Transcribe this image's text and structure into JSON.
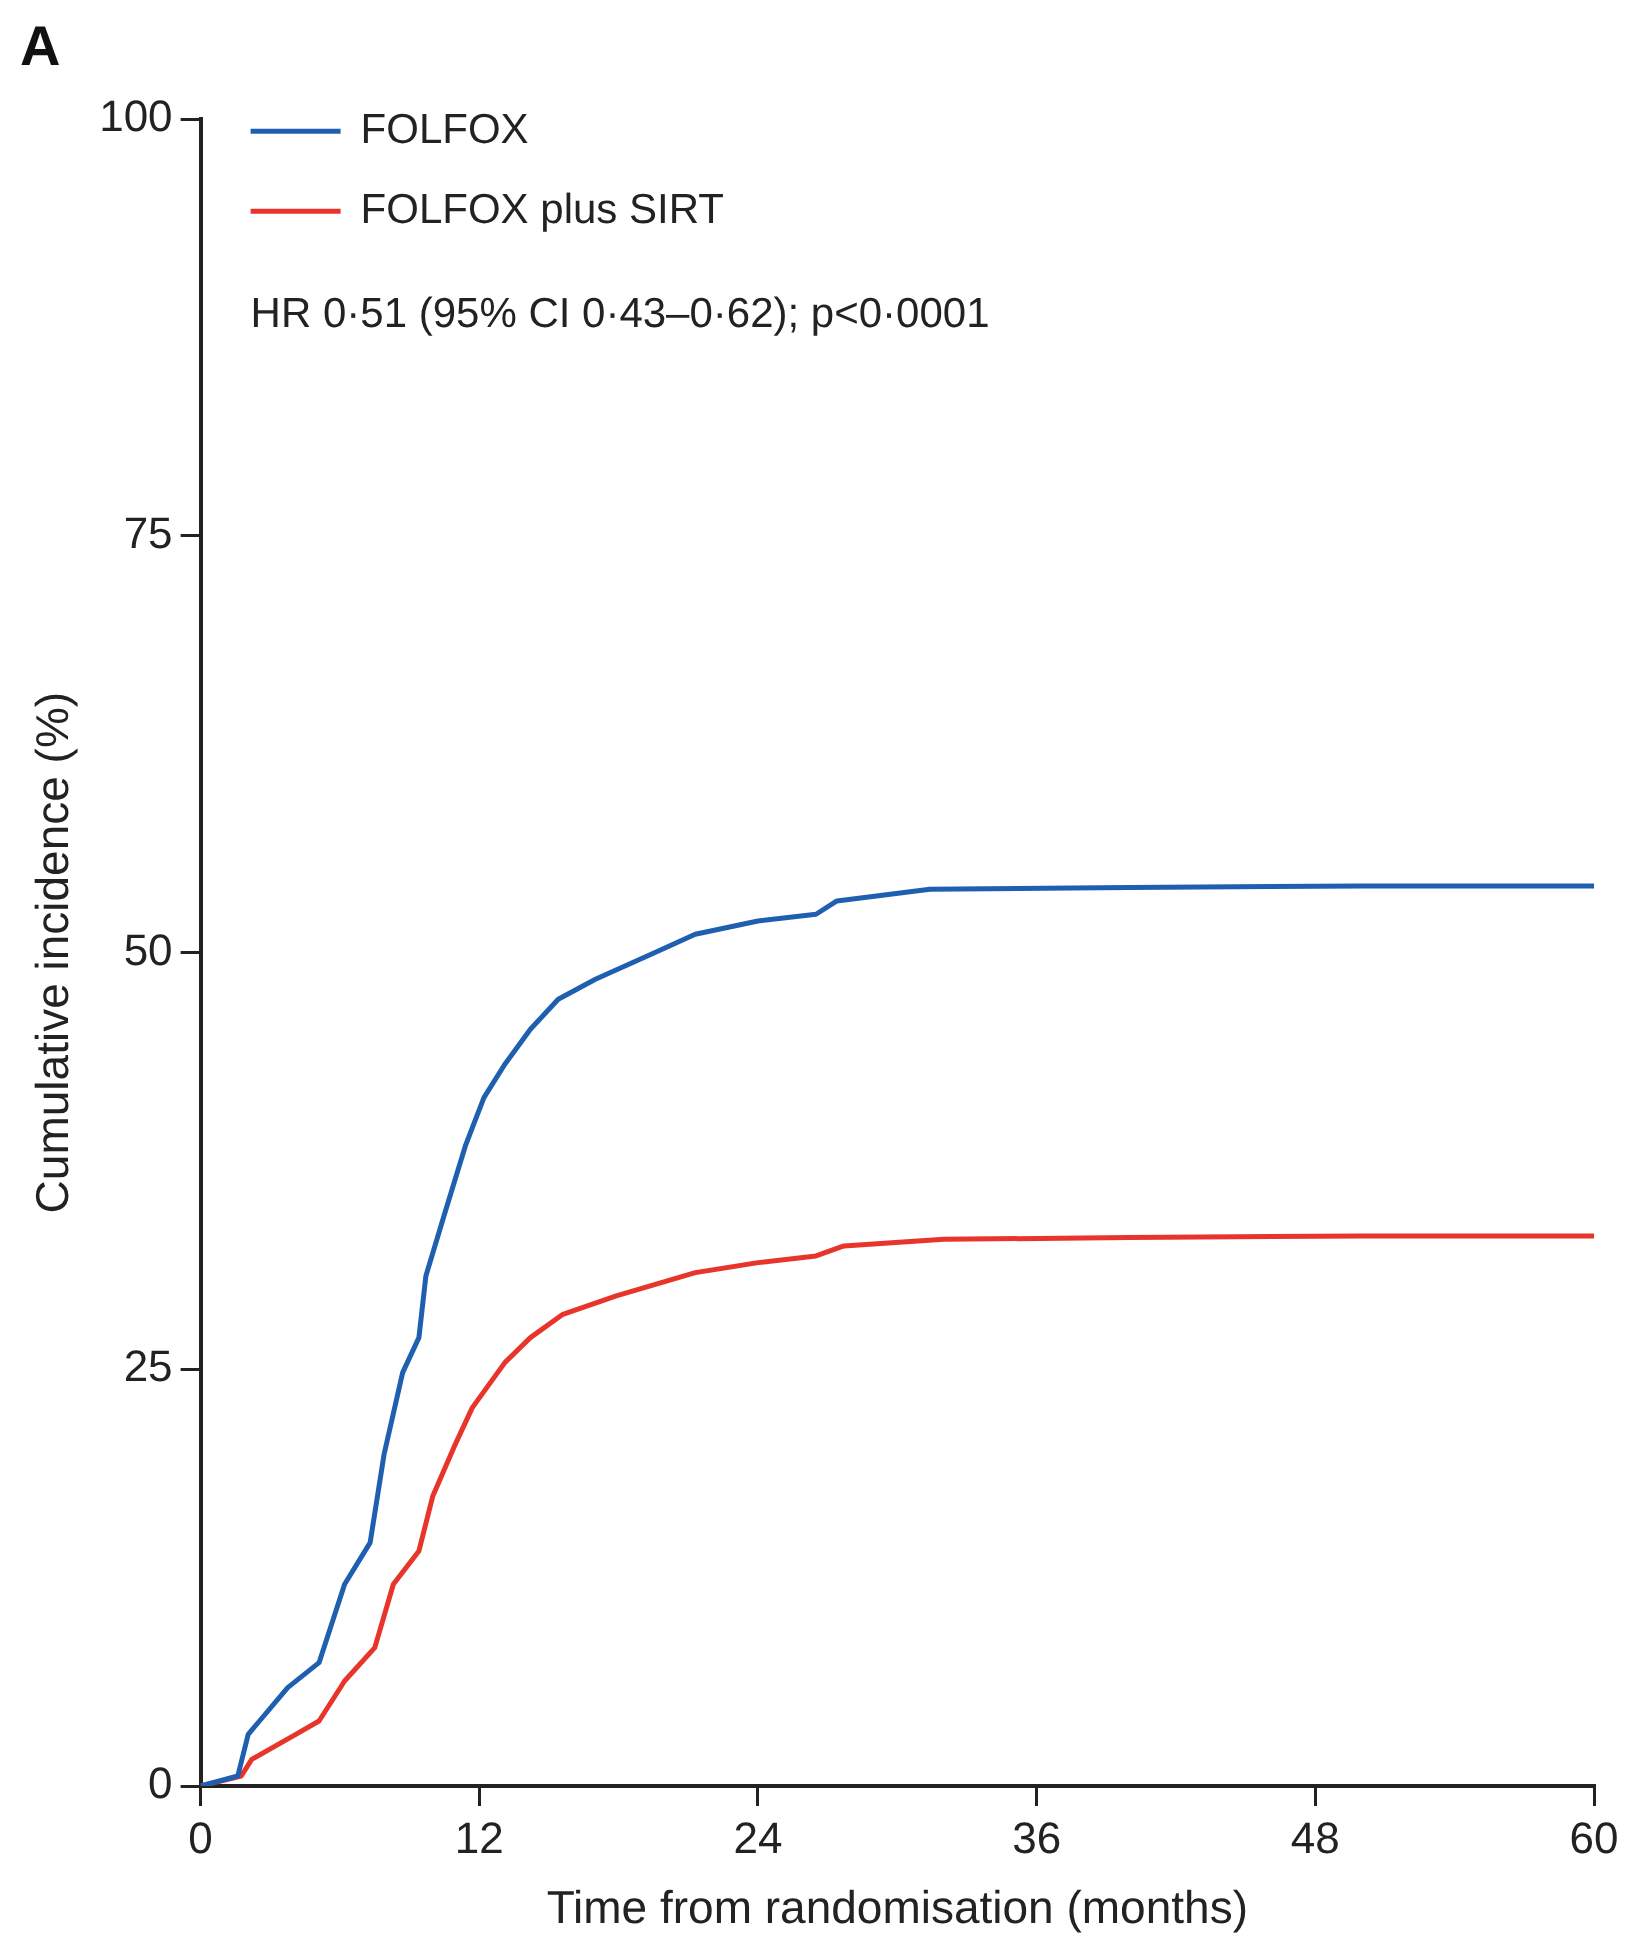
{
  "chart_data": {
    "type": "line",
    "title": "A",
    "xlabel": "Time from randomisation (months)",
    "ylabel": "Cumulative incidence (%)",
    "xlim": [
      0,
      60
    ],
    "xticks": [
      0,
      12,
      24,
      36,
      48,
      60
    ],
    "ylim": [
      0,
      100
    ],
    "yticks": [
      0,
      25,
      50,
      75,
      100
    ],
    "grid": false,
    "legend": "top left",
    "marker": "none",
    "line_style": "solid",
    "annotations": [
      "HR 0·51 (95% CI 0·43–0·62); p<0·0001"
    ],
    "series": [
      {
        "name": "FOLFOX",
        "color": "#1f5fb0",
        "x": [
          0,
          1.6,
          2.05,
          3.75,
          5.1,
          6.2,
          7.3,
          7.9,
          8.7,
          9.4,
          9.7,
          10.5,
          11.4,
          12.2,
          13.1,
          14.2,
          15.4,
          17.0,
          19.4,
          21.3,
          24.0,
          26.5,
          27.4,
          31.4,
          40,
          50,
          60
        ],
        "values": [
          0,
          0.6,
          3.1,
          5.9,
          7.4,
          12.1,
          14.6,
          19.9,
          24.8,
          26.9,
          30.6,
          34.3,
          38.4,
          41.3,
          43.3,
          45.4,
          47.2,
          48.4,
          49.9,
          51.1,
          51.9,
          52.3,
          53.1,
          53.8,
          53.9,
          54.0,
          54.0
        ]
      },
      {
        "name": "FOLFOX plus SIRT",
        "color": "#e8352b",
        "x": [
          0,
          1.75,
          2.2,
          4.1,
          5.1,
          6.2,
          7.5,
          8.3,
          9.4,
          10.0,
          10.9,
          11.7,
          13.1,
          14.2,
          15.6,
          17.9,
          21.3,
          24.0,
          26.5,
          27.7,
          32.0,
          40,
          50,
          60
        ],
        "values": [
          0,
          0.6,
          1.6,
          3.1,
          3.9,
          6.3,
          8.3,
          12.1,
          14.1,
          17.4,
          20.3,
          22.7,
          25.4,
          26.9,
          28.3,
          29.4,
          30.8,
          31.4,
          31.8,
          32.4,
          32.8,
          32.9,
          33.0,
          33.0
        ]
      }
    ]
  }
}
